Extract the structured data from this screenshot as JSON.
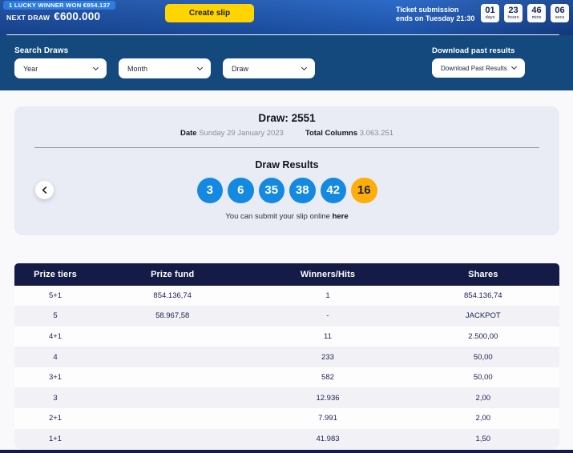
{
  "topbar": {
    "winner_banner": "1 LUCKY WINNER WON €854.137",
    "next_draw_label": "NEXT DRAW",
    "next_draw_amount": "€600.000",
    "create_slip_label": "Create slip",
    "ticket_submission_line1": "Ticket submission",
    "ticket_submission_line2": "ends on Tuesday 21:30",
    "countdown": [
      {
        "value": "01",
        "unit": "days"
      },
      {
        "value": "23",
        "unit": "hours"
      },
      {
        "value": "46",
        "unit": "mins"
      },
      {
        "value": "06",
        "unit": "secs"
      }
    ]
  },
  "filterbar": {
    "search_label": "Search Draws",
    "year_select": "Year",
    "month_select": "Month",
    "draw_select": "Draw",
    "download_label": "Download past results",
    "download_select": "Download Past Results"
  },
  "draw_card": {
    "title": "Draw: 2551",
    "date_label": "Date",
    "date_value": "Sunday 29 January 2023",
    "total_columns_label": "Total Columns",
    "total_columns_value": "3.063.251",
    "results_title": "Draw Results",
    "numbers": [
      "3",
      "6",
      "35",
      "38",
      "42"
    ],
    "bonus_number": "16",
    "submit_text": "You can submit your slip online",
    "submit_link_label": "here"
  },
  "prize_table": {
    "headers": [
      "Prize tiers",
      "Prize fund",
      "Winners/Hits",
      "Shares"
    ],
    "rows": [
      [
        "5+1",
        "854.136,74",
        "1",
        "854.136,74"
      ],
      [
        "5",
        "58.967,58",
        "-",
        "JACKPOT"
      ],
      [
        "4+1",
        "",
        "11",
        "2.500,00"
      ],
      [
        "4",
        "",
        "233",
        "50,00"
      ],
      [
        "3+1",
        "",
        "582",
        "50,00"
      ],
      [
        "3",
        "",
        "12.936",
        "2,00"
      ],
      [
        "2+1",
        "",
        "7.991",
        "2,00"
      ],
      [
        "1+1",
        "",
        "41.983",
        "1,50"
      ]
    ]
  },
  "colors": {
    "accent_yellow": "#ffd400",
    "ball_blue": "#1489e2",
    "ball_amber": "#ffad08",
    "header_navy": "#141b47",
    "filter_blue": "#14497e"
  }
}
